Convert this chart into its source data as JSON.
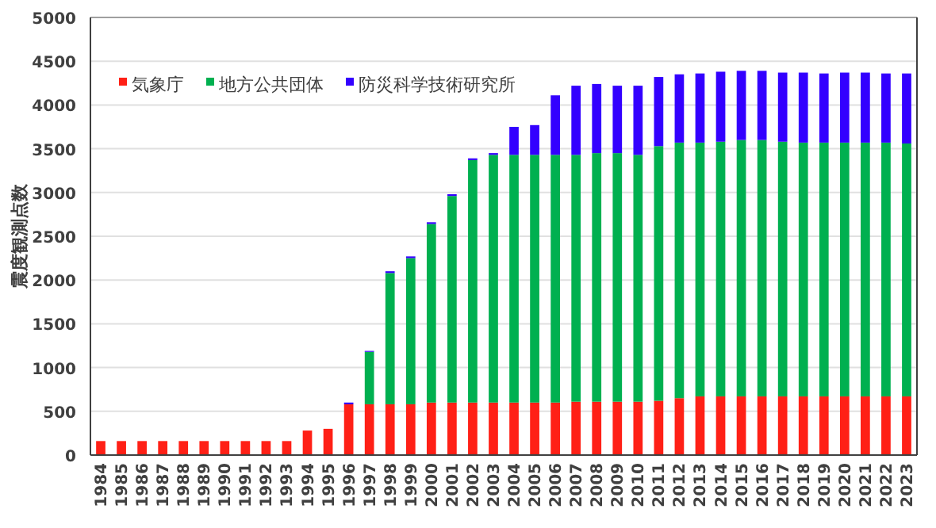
{
  "chart_data": {
    "type": "bar",
    "stacked": true,
    "ylabel": "震度観測点数",
    "legend": "top left",
    "grid": "y",
    "ylim": [
      0,
      5000
    ],
    "yticks": [
      0,
      500,
      1000,
      1500,
      2000,
      2500,
      3000,
      3500,
      4000,
      4500,
      5000
    ],
    "categories": [
      "1984",
      "1985",
      "1986",
      "1987",
      "1988",
      "1989",
      "1990",
      "1991",
      "1992",
      "1993",
      "1994",
      "1995",
      "1996",
      "1997",
      "1998",
      "1999",
      "2000",
      "2001",
      "2002",
      "2003",
      "2004",
      "2005",
      "2006",
      "2007",
      "2008",
      "2009",
      "2010",
      "2011",
      "2012",
      "2013",
      "2014",
      "2015",
      "2016",
      "2017",
      "2018",
      "2019",
      "2020",
      "2021",
      "2022",
      "2023"
    ],
    "series": [
      {
        "name": "気象庁",
        "color": "#ff2016",
        "values": [
          160,
          160,
          160,
          160,
          160,
          160,
          160,
          160,
          160,
          160,
          280,
          300,
          580,
          580,
          580,
          580,
          600,
          600,
          600,
          600,
          600,
          600,
          600,
          610,
          610,
          610,
          610,
          620,
          650,
          670,
          670,
          670,
          670,
          670,
          670,
          670,
          670,
          670,
          670,
          670
        ]
      },
      {
        "name": "地方公共団体",
        "color": "#00b050",
        "values": [
          0,
          0,
          0,
          0,
          0,
          0,
          0,
          0,
          0,
          0,
          0,
          0,
          0,
          600,
          1500,
          1670,
          2040,
          2360,
          2770,
          2830,
          2830,
          2830,
          2830,
          2820,
          2840,
          2840,
          2820,
          2910,
          2920,
          2900,
          2910,
          2930,
          2930,
          2910,
          2900,
          2900,
          2900,
          2900,
          2900,
          2890
        ]
      },
      {
        "name": "防災科学技術研究所",
        "color": "#3300ff",
        "values": [
          0,
          0,
          0,
          0,
          0,
          0,
          0,
          0,
          0,
          0,
          0,
          0,
          20,
          10,
          20,
          20,
          20,
          20,
          20,
          20,
          320,
          340,
          680,
          790,
          790,
          770,
          790,
          790,
          780,
          790,
          800,
          790,
          790,
          790,
          800,
          790,
          800,
          800,
          790,
          800
        ]
      }
    ]
  }
}
